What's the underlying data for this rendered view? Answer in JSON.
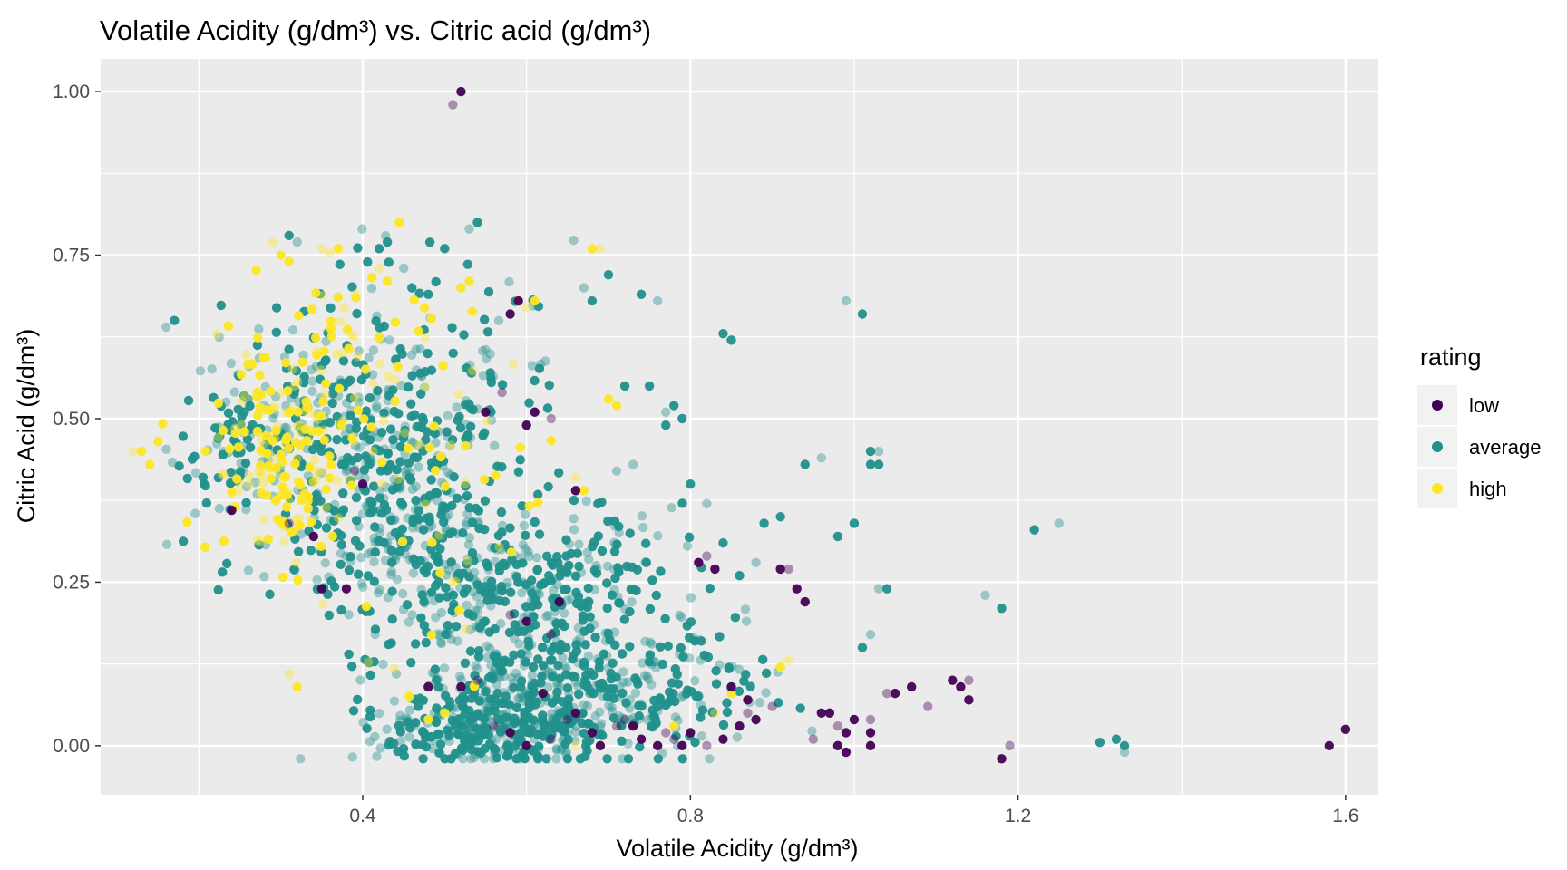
{
  "chart_data": {
    "type": "scatter",
    "title": "Volatile Acidity (g/dm³) vs. Citric acid (g/dm³)",
    "xlabel": "Volatile Acidity (g/dm³)",
    "ylabel": "Citric Acid (g/dm³)",
    "xlim": [
      0.08,
      1.64
    ],
    "ylim": [
      -0.075,
      1.05
    ],
    "x_ticks": [
      0.4,
      0.8,
      1.2,
      1.6
    ],
    "x_tick_labels": [
      "0.4",
      "0.8",
      "1.2",
      "1.6"
    ],
    "y_ticks": [
      0.0,
      0.25,
      0.5,
      0.75,
      1.0
    ],
    "y_tick_labels": [
      "0.00",
      "0.25",
      "0.50",
      "0.75",
      "1.00"
    ],
    "grid": true,
    "background": "#ebebeb",
    "legend": {
      "title": "rating",
      "position": "right",
      "entries": [
        {
          "label": "low",
          "color": "#440154"
        },
        {
          "label": "average",
          "color": "#21908c"
        },
        {
          "label": "high",
          "color": "#fde725"
        }
      ]
    },
    "series": [
      {
        "name": "low",
        "color": "#440154",
        "points": [
          [
            0.52,
            1.0
          ],
          [
            0.51,
            0.98
          ],
          [
            0.58,
            0.66
          ],
          [
            0.59,
            0.68
          ],
          [
            0.63,
            0.5
          ],
          [
            0.61,
            0.51
          ],
          [
            0.6,
            0.49
          ],
          [
            0.57,
            0.54
          ],
          [
            0.55,
            0.51
          ],
          [
            0.4,
            0.4
          ],
          [
            0.39,
            0.42
          ],
          [
            0.35,
            0.24
          ],
          [
            0.38,
            0.24
          ],
          [
            0.31,
            0.34
          ],
          [
            0.24,
            0.36
          ],
          [
            0.34,
            0.32
          ],
          [
            0.58,
            0.2
          ],
          [
            0.64,
            0.22
          ],
          [
            0.6,
            0.19
          ],
          [
            0.63,
            0.17
          ],
          [
            0.66,
            0.39
          ],
          [
            0.83,
            0.27
          ],
          [
            0.82,
            0.29
          ],
          [
            0.81,
            0.28
          ],
          [
            0.91,
            0.27
          ],
          [
            0.92,
            0.27
          ],
          [
            0.93,
            0.24
          ],
          [
            0.94,
            0.22
          ],
          [
            0.87,
            0.05
          ],
          [
            0.88,
            0.04
          ],
          [
            0.86,
            0.03
          ],
          [
            0.9,
            0.06
          ],
          [
            0.96,
            0.05
          ],
          [
            0.97,
            0.05
          ],
          [
            0.98,
            0.03
          ],
          [
            0.99,
            0.02
          ],
          [
            1.0,
            0.04
          ],
          [
            1.02,
            0.04
          ],
          [
            1.02,
            0.02
          ],
          [
            1.02,
            0.0
          ],
          [
            1.04,
            0.08
          ],
          [
            1.05,
            0.08
          ],
          [
            1.07,
            0.09
          ],
          [
            1.09,
            0.06
          ],
          [
            1.12,
            0.1
          ],
          [
            1.13,
            0.09
          ],
          [
            1.14,
            0.1
          ],
          [
            1.14,
            0.07
          ],
          [
            1.18,
            -0.02
          ],
          [
            1.19,
            0.0
          ],
          [
            1.58,
            0.0
          ],
          [
            1.6,
            0.025
          ],
          [
            0.72,
            0.04
          ],
          [
            0.74,
            0.01
          ],
          [
            0.76,
            0.0
          ],
          [
            0.78,
            0.01
          ],
          [
            0.79,
            0.0
          ],
          [
            0.8,
            0.02
          ],
          [
            0.82,
            0.0
          ],
          [
            0.84,
            0.01
          ],
          [
            0.69,
            0.0
          ],
          [
            0.71,
            0.03
          ],
          [
            0.66,
            0.05
          ],
          [
            0.62,
            0.08
          ],
          [
            0.54,
            0.1
          ],
          [
            0.52,
            0.09
          ],
          [
            0.48,
            0.09
          ],
          [
            0.56,
            0.03
          ],
          [
            0.58,
            0.02
          ],
          [
            0.6,
            0.0
          ],
          [
            0.63,
            0.01
          ],
          [
            0.85,
            0.09
          ],
          [
            0.87,
            0.07
          ],
          [
            0.95,
            0.01
          ],
          [
            0.98,
            0.0
          ],
          [
            0.99,
            -0.01
          ],
          [
            0.77,
            0.02
          ],
          [
            0.73,
            0.03
          ],
          [
            0.68,
            0.02
          ],
          [
            0.65,
            0.04
          ]
        ]
      },
      {
        "name": "average",
        "color": "#21908c",
        "points": [
          [
            0.54,
            0.8
          ],
          [
            0.53,
            0.79
          ],
          [
            0.5,
            0.76
          ],
          [
            0.31,
            0.78
          ],
          [
            0.32,
            0.77
          ],
          [
            0.42,
            0.76
          ],
          [
            0.43,
            0.77
          ],
          [
            0.67,
            0.7
          ],
          [
            0.7,
            0.72
          ],
          [
            0.68,
            0.68
          ],
          [
            0.45,
            0.73
          ],
          [
            0.46,
            0.7
          ],
          [
            0.48,
            0.69
          ],
          [
            0.16,
            0.64
          ],
          [
            0.17,
            0.65
          ],
          [
            0.74,
            0.69
          ],
          [
            0.76,
            0.68
          ],
          [
            0.84,
            0.63
          ],
          [
            0.85,
            0.62
          ],
          [
            0.99,
            0.68
          ],
          [
            1.01,
            0.66
          ],
          [
            1.02,
            0.45
          ],
          [
            1.03,
            0.45
          ],
          [
            1.02,
            0.43
          ],
          [
            1.03,
            0.43
          ],
          [
            1.25,
            0.34
          ],
          [
            1.22,
            0.33
          ],
          [
            1.18,
            0.21
          ],
          [
            1.16,
            0.23
          ],
          [
            1.32,
            0.01
          ],
          [
            1.33,
            0.0
          ],
          [
            1.33,
            -0.01
          ],
          [
            1.3,
            0.005
          ],
          [
            0.94,
            0.43
          ],
          [
            0.96,
            0.44
          ],
          [
            0.98,
            0.32
          ],
          [
            1.0,
            0.34
          ],
          [
            1.03,
            0.24
          ],
          [
            1.04,
            0.24
          ],
          [
            1.01,
            0.15
          ],
          [
            1.02,
            0.17
          ],
          [
            0.91,
            0.35
          ],
          [
            0.89,
            0.34
          ],
          [
            0.88,
            0.28
          ],
          [
            0.86,
            0.26
          ],
          [
            0.84,
            0.31
          ],
          [
            0.82,
            0.37
          ],
          [
            0.8,
            0.4
          ],
          [
            0.78,
            0.52
          ],
          [
            0.77,
            0.51
          ],
          [
            0.79,
            0.5
          ],
          [
            0.77,
            0.49
          ],
          [
            0.73,
            0.43
          ],
          [
            0.75,
            0.55
          ],
          [
            0.72,
            0.55
          ],
          [
            0.71,
            0.42
          ]
        ],
        "clusters": [
          {
            "cx": 0.37,
            "cy": 0.5,
            "sx": 0.07,
            "sy": 0.1,
            "n": 260
          },
          {
            "cx": 0.46,
            "cy": 0.42,
            "sx": 0.05,
            "sy": 0.08,
            "n": 160
          },
          {
            "cx": 0.44,
            "cy": 0.3,
            "sx": 0.06,
            "sy": 0.06,
            "n": 140
          },
          {
            "cx": 0.58,
            "cy": 0.22,
            "sx": 0.08,
            "sy": 0.07,
            "n": 300
          },
          {
            "cx": 0.62,
            "cy": 0.07,
            "sx": 0.1,
            "sy": 0.05,
            "n": 380
          },
          {
            "cx": 0.55,
            "cy": 0.02,
            "sx": 0.07,
            "sy": 0.025,
            "n": 200
          },
          {
            "cx": 0.78,
            "cy": 0.1,
            "sx": 0.07,
            "sy": 0.07,
            "n": 90
          },
          {
            "cx": 0.55,
            "cy": 0.55,
            "sx": 0.06,
            "sy": 0.08,
            "n": 60
          },
          {
            "cx": 0.68,
            "cy": 0.3,
            "sx": 0.06,
            "sy": 0.06,
            "n": 70
          },
          {
            "cx": 0.25,
            "cy": 0.45,
            "sx": 0.04,
            "sy": 0.08,
            "n": 70
          }
        ]
      },
      {
        "name": "high",
        "color": "#fde725",
        "points": [
          [
            0.13,
            0.45
          ],
          [
            0.12,
            0.45
          ],
          [
            0.14,
            0.43
          ],
          [
            0.15,
            0.465
          ],
          [
            0.29,
            0.77
          ],
          [
            0.3,
            0.75
          ],
          [
            0.31,
            0.74
          ],
          [
            0.35,
            0.76
          ],
          [
            0.37,
            0.76
          ],
          [
            0.68,
            0.76
          ],
          [
            0.69,
            0.76
          ],
          [
            0.53,
            0.71
          ],
          [
            0.52,
            0.7
          ],
          [
            0.42,
            0.73
          ],
          [
            0.43,
            0.71
          ],
          [
            0.59,
            0.68
          ],
          [
            0.6,
            0.67
          ],
          [
            0.61,
            0.68
          ],
          [
            0.32,
            0.09
          ],
          [
            0.31,
            0.11
          ],
          [
            0.48,
            0.04
          ],
          [
            0.5,
            0.05
          ],
          [
            0.66,
            0.41
          ],
          [
            0.67,
            0.39
          ],
          [
            0.91,
            0.12
          ],
          [
            0.92,
            0.13
          ],
          [
            0.7,
            0.53
          ],
          [
            0.71,
            0.52
          ],
          [
            0.83,
            0.05
          ],
          [
            0.85,
            0.08
          ],
          [
            0.78,
            0.03
          ],
          [
            0.66,
            0.0
          ]
        ],
        "clusters": [
          {
            "cx": 0.3,
            "cy": 0.45,
            "sx": 0.045,
            "sy": 0.09,
            "n": 180
          },
          {
            "cx": 0.4,
            "cy": 0.6,
            "sx": 0.06,
            "sy": 0.08,
            "n": 50
          },
          {
            "cx": 0.5,
            "cy": 0.3,
            "sx": 0.08,
            "sy": 0.12,
            "n": 40
          }
        ]
      }
    ]
  }
}
